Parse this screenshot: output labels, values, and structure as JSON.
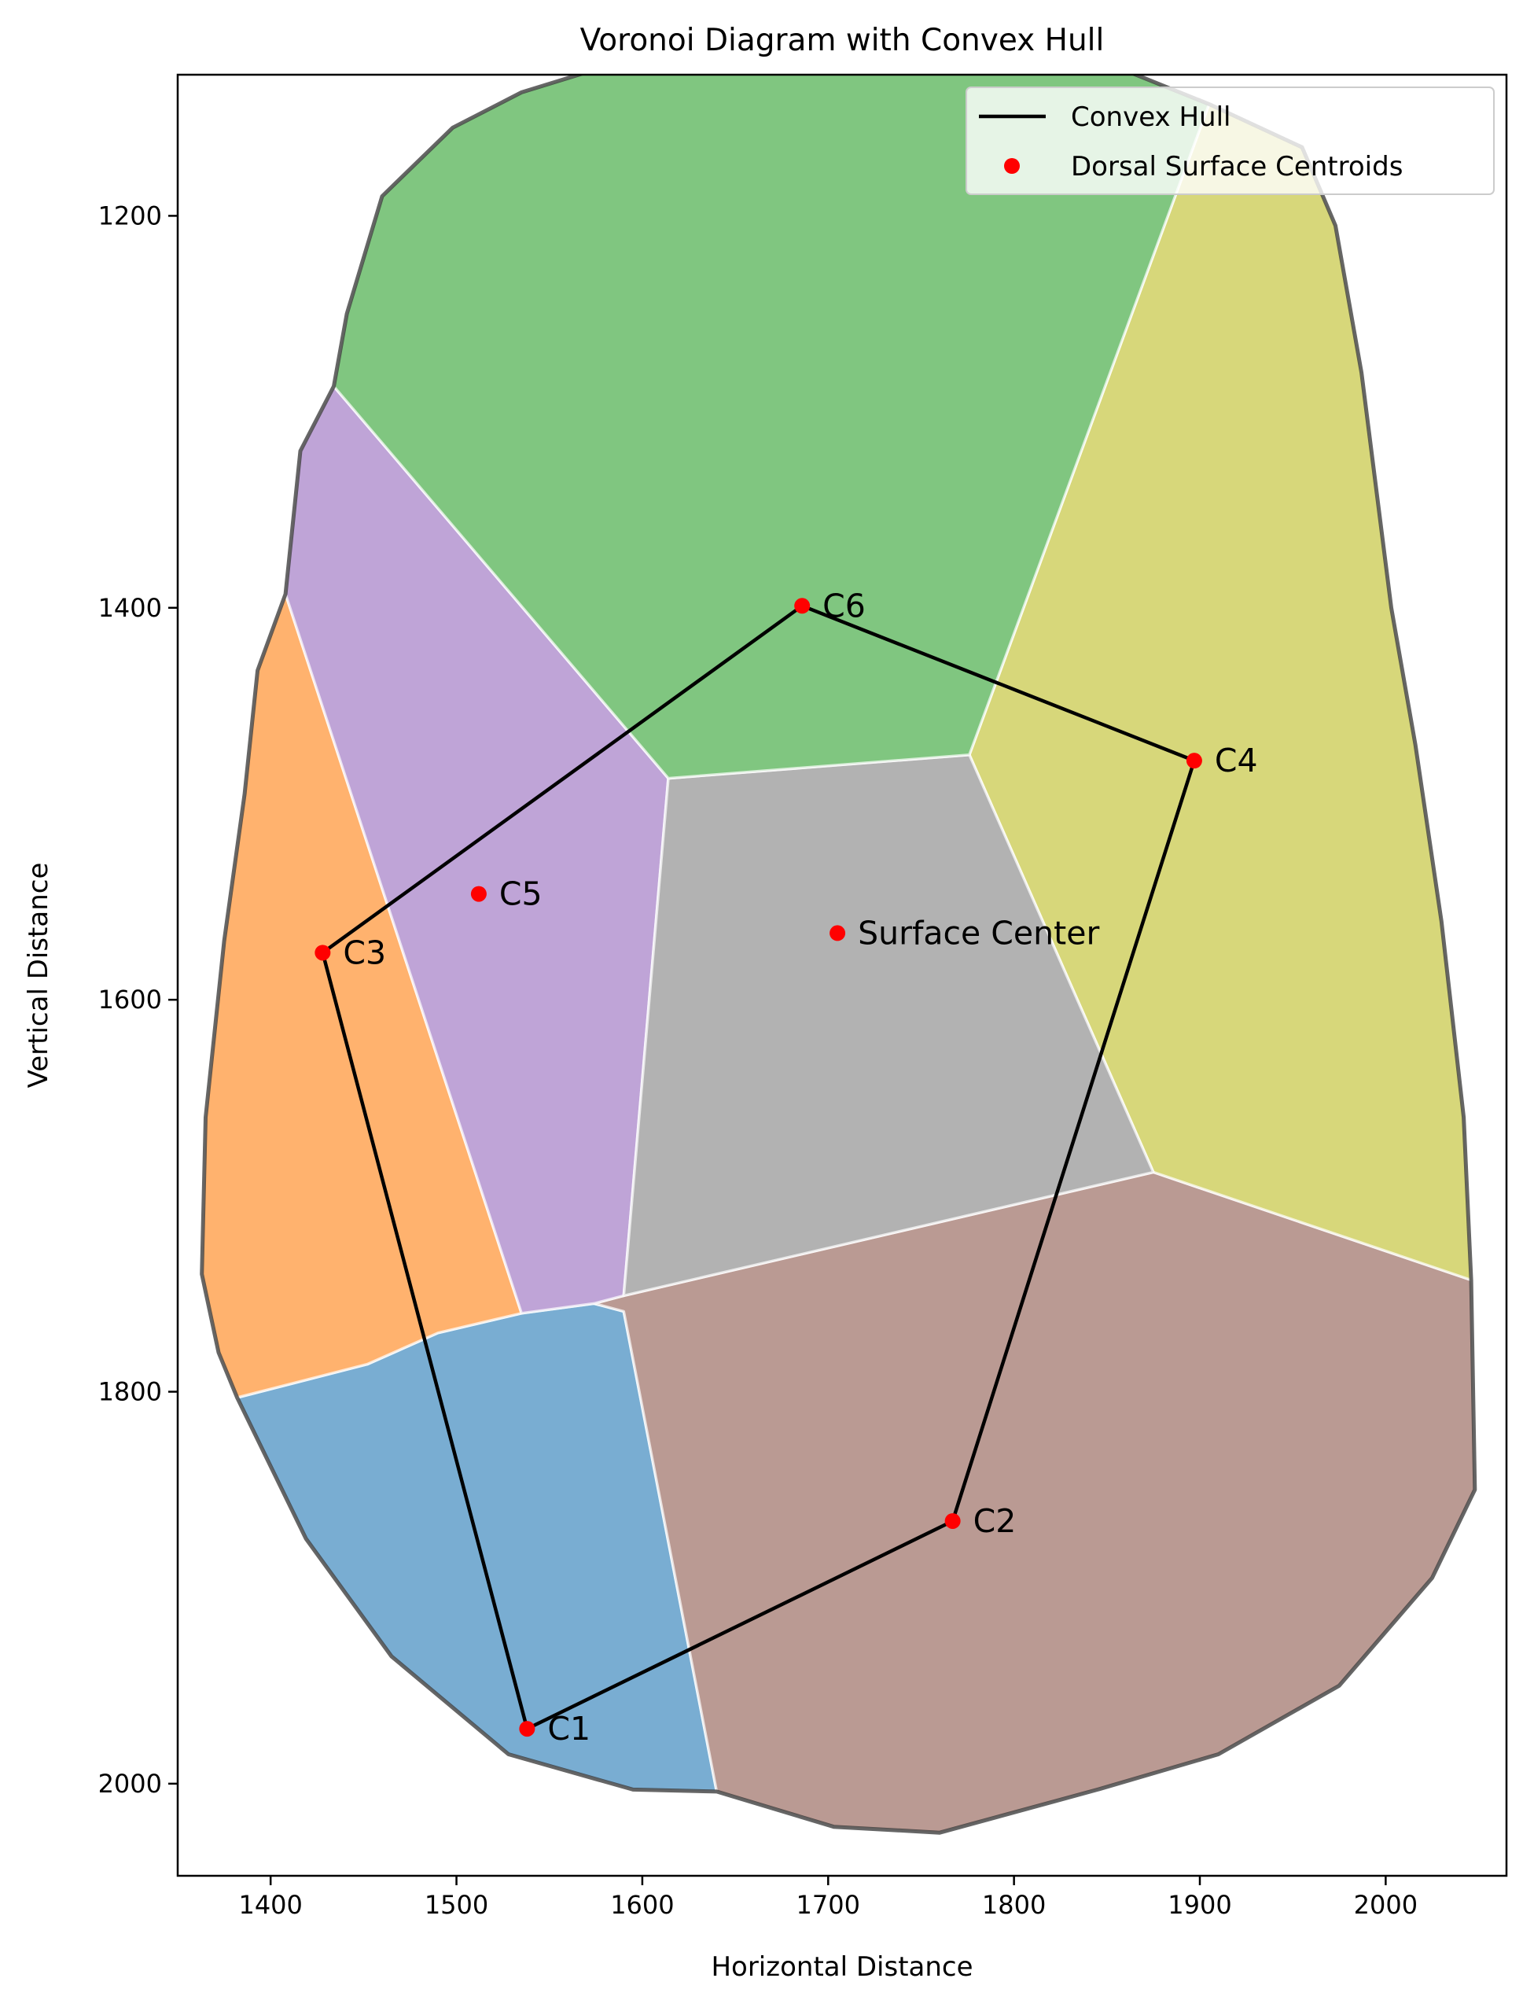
{
  "chart_data": {
    "type": "scatter",
    "title": "Voronoi Diagram with Convex Hull",
    "xlabel": "Horizontal Distance",
    "ylabel": "Vertical Distance",
    "xlim": [
      1350,
      2065
    ],
    "ylim": [
      2047,
      1128
    ],
    "y_inverted": true,
    "x_ticks": [
      1400,
      1500,
      1600,
      1700,
      1800,
      1900,
      2000
    ],
    "y_ticks": [
      1200,
      1400,
      1600,
      1800,
      2000
    ],
    "grid": false,
    "legend": {
      "position": "top-right",
      "entries": [
        {
          "label": "Convex Hull",
          "marker": "line",
          "color": "#000000"
        },
        {
          "label": "Dorsal Surface Centroids",
          "marker": "dot",
          "color": "#ff0000"
        }
      ]
    },
    "centroids": [
      {
        "label": "C1",
        "x": 1538,
        "y": 1972
      },
      {
        "label": "C2",
        "x": 1767,
        "y": 1866
      },
      {
        "label": "C3",
        "x": 1428,
        "y": 1576
      },
      {
        "label": "C4",
        "x": 1897,
        "y": 1478
      },
      {
        "label": "C5",
        "x": 1512,
        "y": 1546
      },
      {
        "label": "C6",
        "x": 1686,
        "y": 1399
      }
    ],
    "surface_center": {
      "label": "Surface Center",
      "x": 1705,
      "y": 1566
    },
    "convex_hull": [
      "C1",
      "C2",
      "C4",
      "C6",
      "C3",
      "C1"
    ],
    "voronoi_regions": [
      {
        "site": "C1",
        "color": "#1f77b4",
        "vertices": [
          [
            1382,
            1803
          ],
          [
            1419,
            1875
          ],
          [
            1465,
            1935
          ],
          [
            1528,
            1985
          ],
          [
            1595,
            2003
          ],
          [
            1640,
            2004
          ],
          [
            1590,
            1759
          ],
          [
            1574,
            1755
          ],
          [
            1535,
            1760
          ],
          [
            1490,
            1770
          ],
          [
            1452,
            1786
          ]
        ]
      },
      {
        "site": "C2",
        "color": "#8c564b",
        "vertices": [
          [
            1574,
            1755
          ],
          [
            1590,
            1759
          ],
          [
            1640,
            2004
          ],
          [
            1703,
            2022
          ],
          [
            1760,
            2025
          ],
          [
            1845,
            2003
          ],
          [
            1910,
            1985
          ],
          [
            1975,
            1950
          ],
          [
            2025,
            1895
          ],
          [
            2048,
            1850
          ],
          [
            2046,
            1743
          ],
          [
            1875,
            1688
          ],
          [
            1590,
            1751
          ]
        ]
      },
      {
        "site": "C3",
        "color": "#ff7f0e",
        "vertices": [
          [
            1408,
            1393
          ],
          [
            1393,
            1432
          ],
          [
            1386,
            1495
          ],
          [
            1375,
            1570
          ],
          [
            1365,
            1660
          ],
          [
            1363,
            1740
          ],
          [
            1372,
            1780
          ],
          [
            1382,
            1803
          ],
          [
            1452,
            1786
          ],
          [
            1490,
            1770
          ],
          [
            1535,
            1760
          ]
        ]
      },
      {
        "site": "C4",
        "color": "#bcbd22",
        "vertices": [
          [
            1776,
            1475
          ],
          [
            1875,
            1688
          ],
          [
            2046,
            1743
          ],
          [
            2042,
            1660
          ],
          [
            2030,
            1560
          ],
          [
            2016,
            1470
          ],
          [
            2003,
            1400
          ],
          [
            1987,
            1280
          ],
          [
            1973,
            1205
          ],
          [
            1955,
            1165
          ],
          [
            1905,
            1143
          ]
        ]
      },
      {
        "site": "C5",
        "color": "#9467bd",
        "vertices": [
          [
            1434,
            1287
          ],
          [
            1416,
            1320
          ],
          [
            1408,
            1393
          ],
          [
            1535,
            1760
          ],
          [
            1574,
            1755
          ],
          [
            1590,
            1751
          ],
          [
            1614,
            1487
          ]
        ]
      },
      {
        "site": "Surface Center",
        "color": "#7f7f7f",
        "vertices": [
          [
            1614,
            1487
          ],
          [
            1776,
            1475
          ],
          [
            1875,
            1688
          ],
          [
            1590,
            1751
          ]
        ]
      },
      {
        "site": "C6",
        "color": "#2ca02c",
        "vertices": [
          [
            1434,
            1287
          ],
          [
            1441,
            1250
          ],
          [
            1460,
            1190
          ],
          [
            1498,
            1155
          ],
          [
            1535,
            1137
          ],
          [
            1600,
            1118
          ],
          [
            1680,
            1114
          ],
          [
            1790,
            1119
          ],
          [
            1863,
            1127
          ],
          [
            1905,
            1143
          ],
          [
            1776,
            1475
          ],
          [
            1614,
            1487
          ]
        ]
      }
    ]
  }
}
